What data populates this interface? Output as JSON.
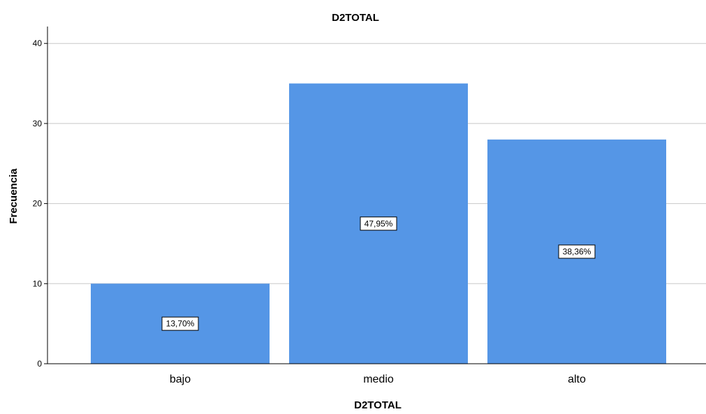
{
  "chart_data": {
    "type": "bar",
    "title": "D2TOTAL",
    "xlabel": "D2TOTAL",
    "ylabel": "Frecuencia",
    "categories": [
      "bajo",
      "medio",
      "alto"
    ],
    "values": [
      10,
      35,
      28
    ],
    "data_labels": [
      "13,70%",
      "47,95%",
      "38,36%"
    ],
    "ylim": [
      0,
      42
    ],
    "yticks": [
      0,
      10,
      20,
      30,
      40
    ],
    "grid": true,
    "bar_color": "#5596e6",
    "grid_color": "#c8c8c8"
  }
}
